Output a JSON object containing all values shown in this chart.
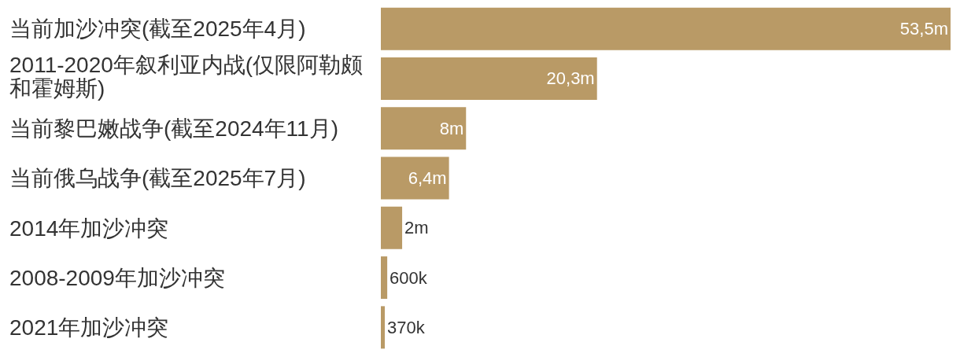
{
  "chart_data": {
    "type": "bar",
    "orientation": "horizontal",
    "categories": [
      "当前加沙冲突(截至2025年4月)",
      "2011-2020年叙利亚内战(仅限阿勒颇和霍姆斯)",
      "当前黎巴嫩战争(截至2024年11月)",
      "当前俄乌战争(截至2025年7月)",
      "2014年加沙冲突",
      "2008-2009年加沙冲突",
      "2021年加沙冲突"
    ],
    "values": [
      53500000,
      20300000,
      8000000,
      6400000,
      2000000,
      600000,
      370000
    ],
    "value_labels": [
      "53,5m",
      "20,3m",
      "8m",
      "6,4m",
      "2m",
      "600k",
      "370k"
    ],
    "color": "#b99a66",
    "tick_labels": "y"
  }
}
